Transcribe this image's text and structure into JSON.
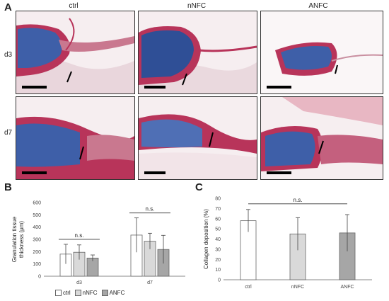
{
  "panel_A": {
    "letter": "A",
    "columns": [
      "ctrl",
      "nNFC",
      "ANFC"
    ],
    "rows": [
      "d3",
      "d7"
    ]
  },
  "panel_B": {
    "letter": "B",
    "legend": [
      "ctrl",
      "nNFC",
      "ANFC"
    ]
  },
  "panel_C": {
    "letter": "C"
  },
  "colors": {
    "ctrl": "#ffffff",
    "nNFC": "#d9d9d9",
    "ANFC": "#a6a6a6",
    "stain_red": "#b8345a",
    "stain_blue": "#3e5fa8"
  },
  "chart_data": [
    {
      "type": "bar",
      "panel": "B",
      "categories": [
        "d3",
        "d7"
      ],
      "series": [
        {
          "name": "ctrl",
          "values": [
            180,
            335
          ],
          "errors": [
            80,
            140
          ]
        },
        {
          "name": "nNFC",
          "values": [
            195,
            285
          ],
          "errors": [
            60,
            65
          ]
        },
        {
          "name": "ANFC",
          "values": [
            148,
            218
          ],
          "errors": [
            25,
            115
          ]
        }
      ],
      "ylabel": "Granulation tissue thickness (μm)",
      "ylim": [
        0,
        600
      ],
      "yticks": [
        0,
        100,
        200,
        300,
        400,
        500,
        600
      ],
      "annotations": [
        "n.s.",
        "n.s."
      ],
      "legend_position": "bottom"
    },
    {
      "type": "bar",
      "panel": "C",
      "categories": [
        "ctrl",
        "nNFC",
        "ANFC"
      ],
      "values": [
        58,
        45,
        46
      ],
      "errors": [
        11,
        16,
        18
      ],
      "colors": [
        "#ffffff",
        "#d9d9d9",
        "#a6a6a6"
      ],
      "ylabel": "Collagen deposition (%)",
      "ylim": [
        0,
        80
      ],
      "yticks": [
        0,
        10,
        20,
        30,
        40,
        50,
        60,
        70,
        80
      ],
      "annotations": [
        "n.s."
      ]
    }
  ]
}
